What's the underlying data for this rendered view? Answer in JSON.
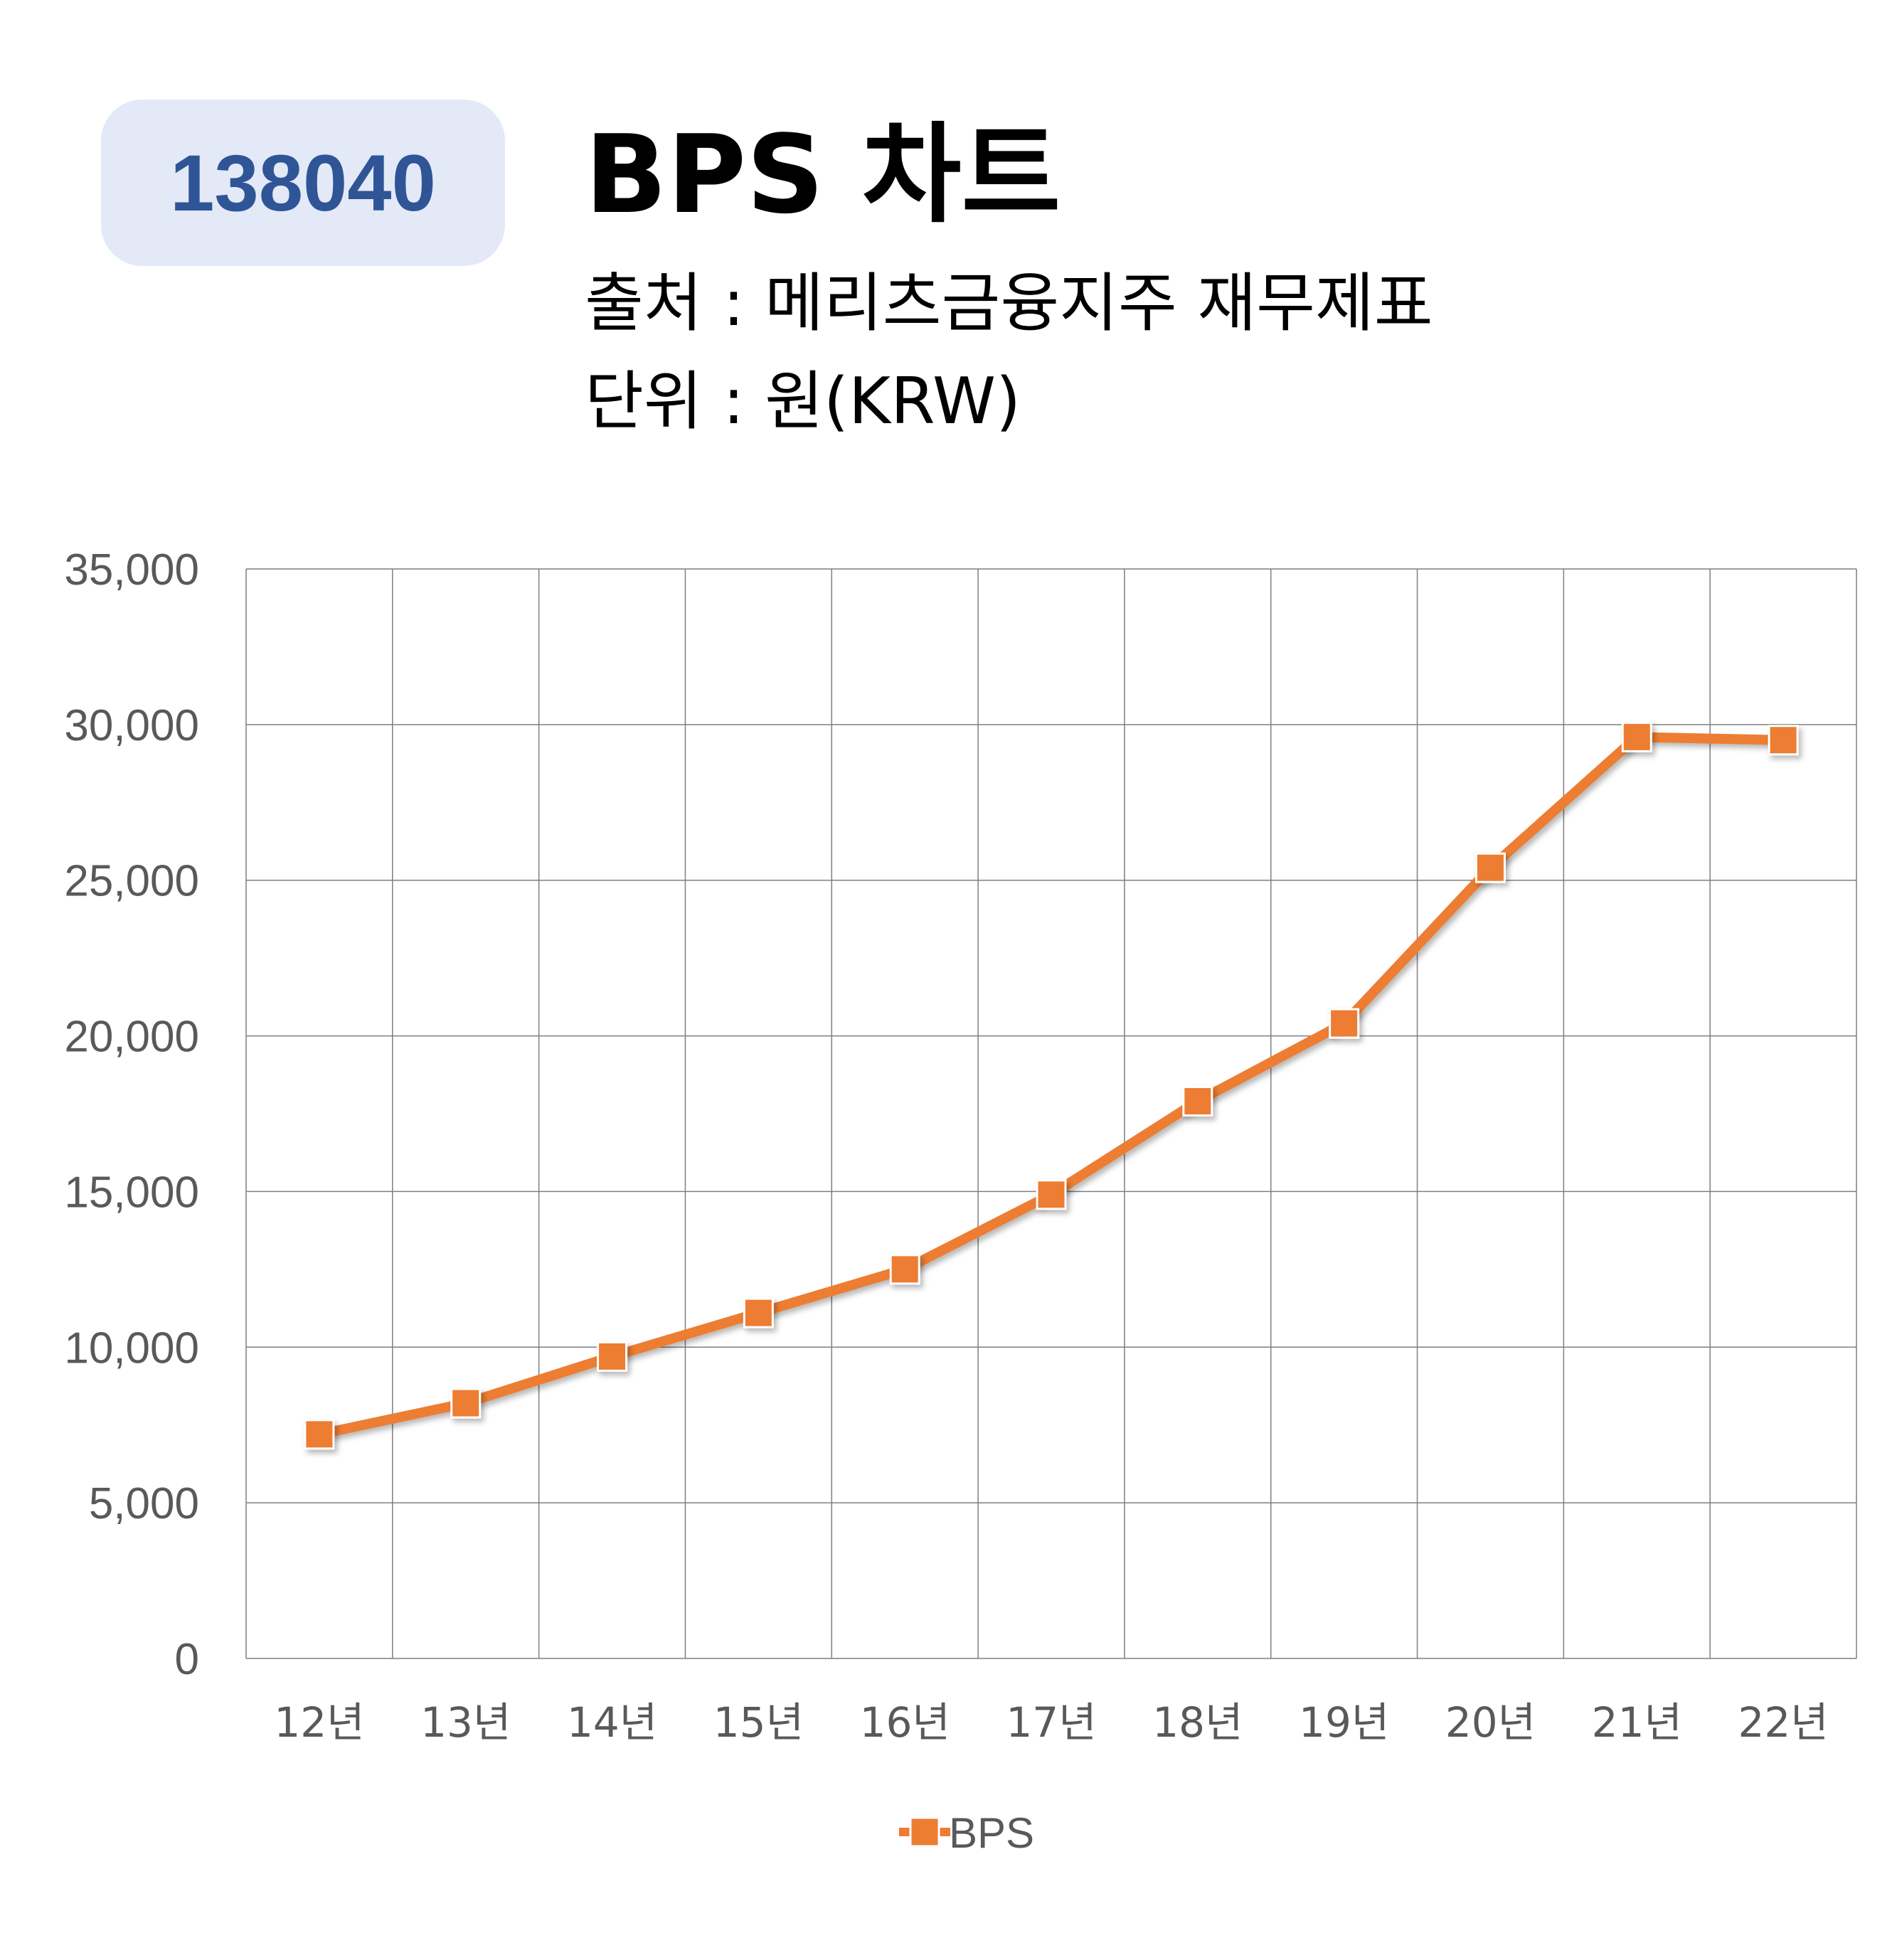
{
  "badge": {
    "code": "138040"
  },
  "header": {
    "title": "BPS 차트",
    "source": "출처 : 메리츠금융지주 재무제표",
    "unit": "단위 : 원(KRW)"
  },
  "chart_data": {
    "type": "line",
    "categories": [
      "12년",
      "13년",
      "14년",
      "15년",
      "16년",
      "17년",
      "18년",
      "19년",
      "20년",
      "21년",
      "22년"
    ],
    "series": [
      {
        "name": "BPS",
        "values": [
          7200,
          8200,
          9700,
          11100,
          12500,
          14900,
          17900,
          20400,
          25400,
          29600,
          29500
        ]
      }
    ],
    "ylim": [
      0,
      35000
    ],
    "yticks": [
      0,
      5000,
      10000,
      15000,
      20000,
      25000,
      30000,
      35000
    ],
    "ytick_labels": [
      "0",
      "5,000",
      "10,000",
      "15,000",
      "20,000",
      "25,000",
      "30,000",
      "35,000"
    ],
    "grid": true,
    "legend": "bottom",
    "colors": {
      "series": "#ed7d31",
      "grid": "#7f7f7f",
      "axis_text": "#595959"
    }
  }
}
